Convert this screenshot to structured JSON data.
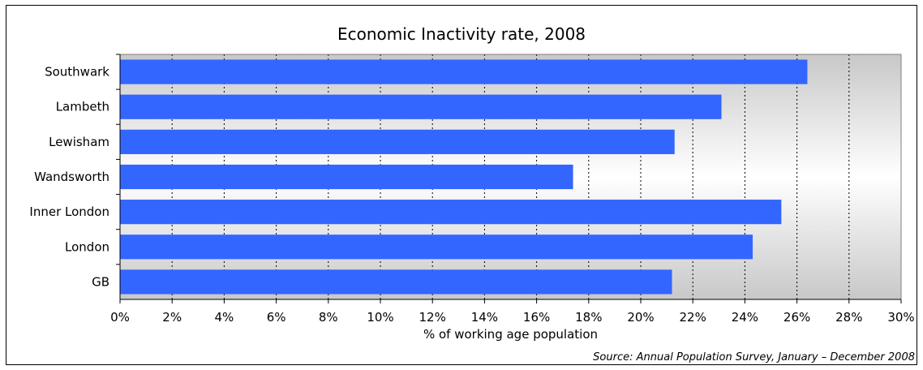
{
  "chart_data": {
    "type": "bar",
    "orientation": "horizontal",
    "title": "Economic Inactivity rate, 2008",
    "xlabel": "% of working age population",
    "ylabel": "",
    "categories": [
      "Southwark",
      "Lambeth",
      "Lewisham",
      "Wandsworth",
      "Inner London",
      "London",
      "GB"
    ],
    "values": [
      26.4,
      23.1,
      21.3,
      17.4,
      25.4,
      24.3,
      21.2
    ],
    "xlim": [
      0,
      30
    ],
    "x_ticks": [
      "0%",
      "2%",
      "4%",
      "6%",
      "8%",
      "10%",
      "12%",
      "14%",
      "16%",
      "18%",
      "20%",
      "22%",
      "24%",
      "26%",
      "28%",
      "30%"
    ],
    "grid": "vertical dotted",
    "legend": "none",
    "bar_color": "#3366ff",
    "source": "Source: Annual Population Survey, January – December 2008"
  }
}
